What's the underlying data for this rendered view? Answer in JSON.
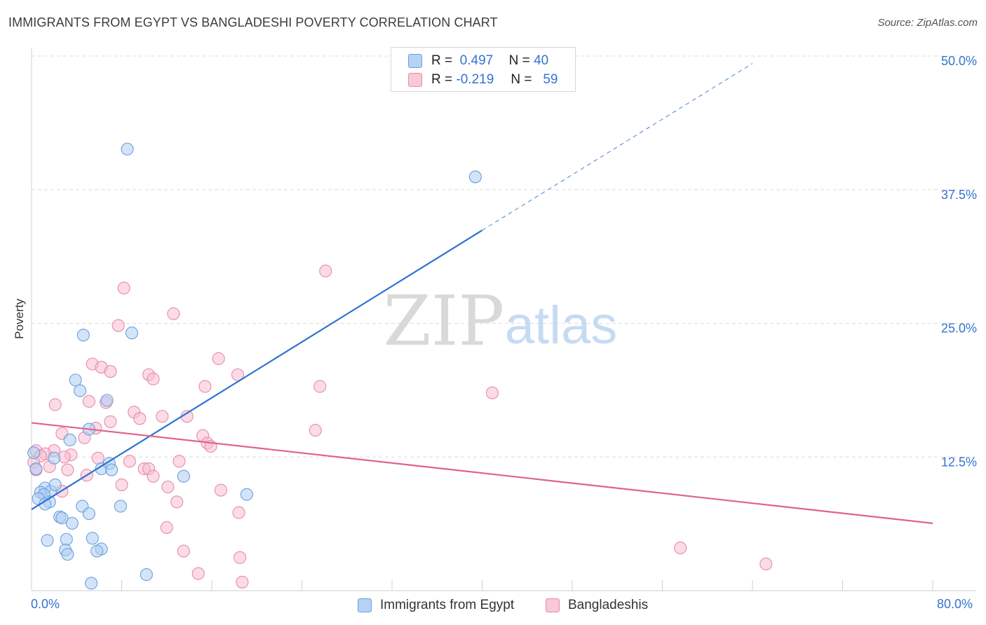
{
  "title": "IMMIGRANTS FROM EGYPT VS BANGLADESHI POVERTY CORRELATION CHART",
  "source": "Source: ZipAtlas.com",
  "watermark": {
    "zip": "ZIP",
    "atlas": "atlas"
  },
  "legend": {
    "r_label": "R =",
    "n_label": "N =",
    "series": [
      {
        "r": "0.497",
        "n": "40"
      },
      {
        "r": "-0.219",
        "n": "59"
      }
    ]
  },
  "colors": {
    "egypt_fill": "#aecdf2",
    "egypt_stroke": "#6a9fdf",
    "egypt_line": "#2e72d0",
    "bangla_fill": "#f7c0d2",
    "bangla_stroke": "#e88aa8",
    "bangla_line": "#e0628e",
    "grid": "#dcdcdc",
    "axis_text": "#3473d0"
  },
  "chart_data": {
    "type": "scatter",
    "title": "IMMIGRANTS FROM EGYPT VS BANGLADESHI POVERTY CORRELATION CHART",
    "xlabel": "",
    "ylabel": "Poverty",
    "xlim": [
      0,
      80
    ],
    "ylim": [
      0,
      50
    ],
    "x_tick_labels": [
      "0.0%",
      "80.0%"
    ],
    "y_ticks": [
      12.5,
      25.0,
      37.5,
      50.0
    ],
    "y_tick_labels": [
      "12.5%",
      "25.0%",
      "37.5%",
      "50.0%"
    ],
    "grid": true,
    "legend_position": "top-center",
    "series": [
      {
        "name": "Immigrants from Egypt",
        "r": 0.497,
        "n": 40,
        "trend": {
          "x0": 0,
          "y0": 7.6,
          "x1": 40,
          "y1": 33.7,
          "dashed_to_x": 64,
          "dashed_to_y": 49.3
        },
        "points": [
          [
            8.5,
            41.3
          ],
          [
            39.4,
            38.7
          ],
          [
            4.6,
            23.9
          ],
          [
            8.9,
            24.1
          ],
          [
            3.9,
            19.7
          ],
          [
            4.3,
            18.7
          ],
          [
            6.7,
            17.8
          ],
          [
            5.1,
            15.1
          ],
          [
            3.4,
            14.1
          ],
          [
            0.2,
            12.9
          ],
          [
            2.0,
            12.4
          ],
          [
            0.4,
            11.4
          ],
          [
            6.2,
            11.4
          ],
          [
            6.9,
            11.9
          ],
          [
            7.1,
            11.3
          ],
          [
            13.5,
            10.7
          ],
          [
            1.2,
            9.6
          ],
          [
            1.7,
            9.3
          ],
          [
            0.8,
            9.2
          ],
          [
            1.1,
            9.0
          ],
          [
            2.1,
            9.9
          ],
          [
            0.6,
            8.6
          ],
          [
            19.1,
            9.0
          ],
          [
            1.6,
            8.3
          ],
          [
            1.2,
            8.1
          ],
          [
            4.5,
            7.9
          ],
          [
            7.9,
            7.9
          ],
          [
            5.1,
            7.2
          ],
          [
            2.5,
            6.9
          ],
          [
            2.7,
            6.8
          ],
          [
            3.6,
            6.3
          ],
          [
            1.4,
            4.7
          ],
          [
            3.1,
            4.8
          ],
          [
            5.4,
            4.9
          ],
          [
            6.2,
            3.9
          ],
          [
            3.0,
            3.8
          ],
          [
            3.2,
            3.4
          ],
          [
            5.8,
            3.7
          ],
          [
            10.2,
            1.5
          ],
          [
            5.3,
            0.7
          ]
        ]
      },
      {
        "name": "Bangladeshis",
        "r": -0.219,
        "n": 59,
        "trend": {
          "x0": 0,
          "y0": 15.7,
          "x1": 80,
          "y1": 6.3
        },
        "points": [
          [
            26.1,
            29.9
          ],
          [
            8.2,
            28.3
          ],
          [
            12.6,
            25.9
          ],
          [
            7.7,
            24.8
          ],
          [
            16.6,
            21.7
          ],
          [
            5.4,
            21.2
          ],
          [
            6.2,
            20.9
          ],
          [
            7.0,
            20.5
          ],
          [
            10.4,
            20.2
          ],
          [
            18.3,
            20.2
          ],
          [
            10.8,
            19.8
          ],
          [
            15.4,
            19.1
          ],
          [
            25.6,
            19.1
          ],
          [
            40.9,
            18.5
          ],
          [
            5.1,
            17.7
          ],
          [
            6.6,
            17.6
          ],
          [
            2.1,
            17.4
          ],
          [
            9.1,
            16.7
          ],
          [
            9.6,
            16.1
          ],
          [
            11.6,
            16.3
          ],
          [
            13.8,
            16.3
          ],
          [
            7.0,
            15.8
          ],
          [
            5.7,
            15.2
          ],
          [
            2.7,
            14.7
          ],
          [
            4.7,
            14.3
          ],
          [
            15.2,
            14.5
          ],
          [
            25.2,
            15.0
          ],
          [
            15.6,
            13.8
          ],
          [
            15.9,
            13.5
          ],
          [
            0.4,
            13.1
          ],
          [
            2.0,
            13.1
          ],
          [
            1.2,
            12.8
          ],
          [
            3.5,
            12.7
          ],
          [
            0.8,
            12.6
          ],
          [
            2.9,
            12.5
          ],
          [
            5.9,
            12.4
          ],
          [
            8.7,
            12.1
          ],
          [
            13.1,
            12.1
          ],
          [
            0.2,
            12.0
          ],
          [
            0.4,
            11.3
          ],
          [
            1.6,
            11.6
          ],
          [
            3.2,
            11.3
          ],
          [
            10.0,
            11.4
          ],
          [
            10.4,
            11.4
          ],
          [
            4.9,
            10.8
          ],
          [
            10.8,
            10.7
          ],
          [
            8.0,
            9.9
          ],
          [
            12.1,
            9.7
          ],
          [
            2.7,
            9.3
          ],
          [
            16.8,
            9.4
          ],
          [
            12.9,
            8.3
          ],
          [
            18.4,
            7.3
          ],
          [
            12.0,
            5.9
          ],
          [
            57.6,
            4.0
          ],
          [
            13.5,
            3.7
          ],
          [
            18.5,
            3.1
          ],
          [
            65.2,
            2.5
          ],
          [
            14.8,
            1.6
          ],
          [
            18.7,
            0.8
          ]
        ]
      }
    ]
  }
}
